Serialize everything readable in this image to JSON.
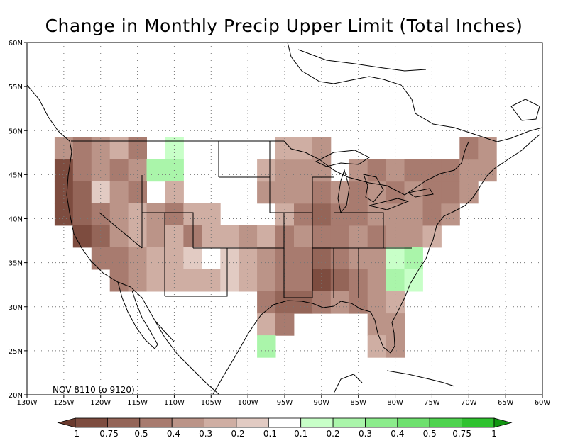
{
  "title": "Change in Monthly Precip Upper Limit (Total Inches)",
  "period_label": "NOV 8110 to 9120)",
  "map": {
    "lon_range": [
      -130,
      -60
    ],
    "lat_range": [
      20,
      60
    ],
    "x_tick_labels": [
      "130W",
      "125W",
      "120W",
      "115W",
      "110W",
      "105W",
      "100W",
      "95W",
      "90W",
      "85W",
      "80W",
      "75W",
      "70W",
      "65W",
      "60W"
    ],
    "y_tick_labels": [
      "20N",
      "25N",
      "30N",
      "35N",
      "40N",
      "45N",
      "50N",
      "55N",
      "60N"
    ],
    "grid": "dotted"
  },
  "colorbar": {
    "levels": [
      "-1",
      "-0.75",
      "-0.5",
      "-0.4",
      "-0.3",
      "-0.2",
      "-0.1",
      "0.1",
      "0.2",
      "0.3",
      "0.4",
      "0.5",
      "0.75",
      "1"
    ],
    "colors": [
      "#6b3a2e",
      "#7d4c3f",
      "#946558",
      "#a87b6f",
      "#bb9488",
      "#cfaea3",
      "#e2cbc3",
      "#ffffff",
      "#c8ffc8",
      "#aaf5aa",
      "#8cec8c",
      "#6ee06e",
      "#4fd34f",
      "#2fc22f",
      "#129612"
    ]
  },
  "legend_colors": {
    "m1": "#6b3a2e",
    "m075": "#7d4c3f",
    "m05": "#946558",
    "m04": "#a87b6f",
    "m03": "#bb9488",
    "m02": "#cfaea3",
    "m01": "#e2cbc3",
    "p01": "#c8ffc8",
    "p02": "#aaf5aa",
    "p03": "#8cec8c"
  },
  "grid_cells": [
    [
      "-125",
      "48",
      "m03"
    ],
    [
      "-122.5",
      "48",
      "m04"
    ],
    [
      "-120",
      "48",
      "m03"
    ],
    [
      "-117.5",
      "48",
      "m02"
    ],
    [
      "-115",
      "48",
      "m04"
    ],
    [
      "-110",
      "48",
      "p01"
    ],
    [
      "-125",
      "45.5",
      "m075"
    ],
    [
      "-122.5",
      "45.5",
      "m04"
    ],
    [
      "-120",
      "45.5",
      "m03"
    ],
    [
      "-117.5",
      "45.5",
      "m04"
    ],
    [
      "-115",
      "45.5",
      "m03"
    ],
    [
      "-112.5",
      "45.5",
      "p02"
    ],
    [
      "-110",
      "45.5",
      "p02"
    ],
    [
      "-125",
      "43",
      "m075"
    ],
    [
      "-122.5",
      "43",
      "m05"
    ],
    [
      "-120",
      "43",
      "m01"
    ],
    [
      "-117.5",
      "43",
      "m03"
    ],
    [
      "-115",
      "43",
      "m04"
    ],
    [
      "-110",
      "43",
      "m02"
    ],
    [
      "-125",
      "40.5",
      "m075"
    ],
    [
      "-122.5",
      "40.5",
      "m05"
    ],
    [
      "-120",
      "40.5",
      "m04"
    ],
    [
      "-117.5",
      "40.5",
      "m03"
    ],
    [
      "-115",
      "40.5",
      "m02"
    ],
    [
      "-112.5",
      "40.5",
      "m03"
    ],
    [
      "-110",
      "40.5",
      "m04"
    ],
    [
      "-107.5",
      "40.5",
      "m02"
    ],
    [
      "-105",
      "40.5",
      "m02"
    ],
    [
      "-122.5",
      "38",
      "m075"
    ],
    [
      "-120",
      "38",
      "m05"
    ],
    [
      "-117.5",
      "38",
      "m03"
    ],
    [
      "-115",
      "38",
      "m02"
    ],
    [
      "-112.5",
      "38",
      "m03"
    ],
    [
      "-110",
      "38",
      "m02"
    ],
    [
      "-107.5",
      "38",
      "m04"
    ],
    [
      "-105",
      "38",
      "m02"
    ],
    [
      "-102.5",
      "38",
      "m02"
    ],
    [
      "-100",
      "38",
      "m03"
    ],
    [
      "-97.5",
      "38",
      "m02"
    ],
    [
      "-120",
      "35.5",
      "m04"
    ],
    [
      "-117.5",
      "35.5",
      "m04"
    ],
    [
      "-115",
      "35.5",
      "m03"
    ],
    [
      "-112.5",
      "35.5",
      "m02"
    ],
    [
      "-110",
      "35.5",
      "m02"
    ],
    [
      "-107.5",
      "35.5",
      "m01"
    ],
    [
      "-102.5",
      "35.5",
      "m01"
    ],
    [
      "-100",
      "35.5",
      "m02"
    ],
    [
      "-97.5",
      "35.5",
      "m03"
    ],
    [
      "-117.5",
      "33",
      "m04"
    ],
    [
      "-115",
      "33",
      "m03"
    ],
    [
      "-112.5",
      "33",
      "m02"
    ],
    [
      "-110",
      "33",
      "m02"
    ],
    [
      "-107.5",
      "33",
      "m02"
    ],
    [
      "-105",
      "33",
      "m02"
    ],
    [
      "-102.5",
      "33",
      "m01"
    ],
    [
      "-100",
      "33",
      "m02"
    ],
    [
      "-97.5",
      "33",
      "m03"
    ],
    [
      "-95",
      "38",
      "m04"
    ],
    [
      "-92.5",
      "38",
      "m03"
    ],
    [
      "-90",
      "38",
      "m04"
    ],
    [
      "-87.5",
      "38",
      "m04"
    ],
    [
      "-85",
      "38",
      "m03"
    ],
    [
      "-82.5",
      "38",
      "m04"
    ],
    [
      "-80",
      "38",
      "m03"
    ],
    [
      "-77.5",
      "38",
      "m03"
    ],
    [
      "-75",
      "38",
      "m02"
    ],
    [
      "-95",
      "40.5",
      "m02"
    ],
    [
      "-92.5",
      "40.5",
      "m04"
    ],
    [
      "-90",
      "40.5",
      "m05"
    ],
    [
      "-87.5",
      "40.5",
      "m04"
    ],
    [
      "-85",
      "40.5",
      "m04"
    ],
    [
      "-82.5",
      "40.5",
      "m03"
    ],
    [
      "-80",
      "40.5",
      "m03"
    ],
    [
      "-77.5",
      "40.5",
      "m03"
    ],
    [
      "-75",
      "40.5",
      "m04"
    ],
    [
      "-72.5",
      "40.5",
      "m03"
    ],
    [
      "-97.5",
      "43",
      "m03"
    ],
    [
      "-95",
      "43",
      "m03"
    ],
    [
      "-92.5",
      "43",
      "m03"
    ],
    [
      "-90",
      "43",
      "m04"
    ],
    [
      "-87.5",
      "43",
      "m03"
    ],
    [
      "-85",
      "43",
      "m04"
    ],
    [
      "-82.5",
      "43",
      "m03"
    ],
    [
      "-80",
      "43",
      "m04"
    ],
    [
      "-77.5",
      "43",
      "m03"
    ],
    [
      "-75",
      "43",
      "m04"
    ],
    [
      "-72.5",
      "43",
      "m04"
    ],
    [
      "-70",
      "43",
      "m03"
    ],
    [
      "-97.5",
      "45.5",
      "m02"
    ],
    [
      "-95",
      "45.5",
      "m03"
    ],
    [
      "-92.5",
      "45.5",
      "m03"
    ],
    [
      "-90",
      "45.5",
      "m03"
    ],
    [
      "-85",
      "45.5",
      "m03"
    ],
    [
      "-82.5",
      "45.5",
      "m04"
    ],
    [
      "-80",
      "45.5",
      "m03"
    ],
    [
      "-77.5",
      "45.5",
      "m04"
    ],
    [
      "-75",
      "45.5",
      "m04"
    ],
    [
      "-72.5",
      "45.5",
      "m04"
    ],
    [
      "-70",
      "45.5",
      "m03"
    ],
    [
      "-67.5",
      "45.5",
      "m03"
    ],
    [
      "-95",
      "48",
      "m02"
    ],
    [
      "-92.5",
      "48",
      "m02"
    ],
    [
      "-90",
      "48",
      "m03"
    ],
    [
      "-70",
      "48",
      "m04"
    ],
    [
      "-67.5",
      "48",
      "m03"
    ],
    [
      "-95",
      "35.5",
      "m04"
    ],
    [
      "-92.5",
      "35.5",
      "m04"
    ],
    [
      "-90",
      "35.5",
      "m05"
    ],
    [
      "-87.5",
      "35.5",
      "m04"
    ],
    [
      "-85",
      "35.5",
      "m03"
    ],
    [
      "-82.5",
      "35.5",
      "m03"
    ],
    [
      "-80",
      "35.5",
      "p01"
    ],
    [
      "-77.5",
      "35.5",
      "p02"
    ],
    [
      "-95",
      "33",
      "m04"
    ],
    [
      "-92.5",
      "33",
      "m04"
    ],
    [
      "-90",
      "33",
      "m075"
    ],
    [
      "-87.5",
      "33",
      "m05"
    ],
    [
      "-85",
      "33",
      "m04"
    ],
    [
      "-82.5",
      "33",
      "m03"
    ],
    [
      "-80",
      "33",
      "p02"
    ],
    [
      "-77.5",
      "33",
      "p01"
    ],
    [
      "-97.5",
      "30.5",
      "m04"
    ],
    [
      "-95",
      "30.5",
      "m05"
    ],
    [
      "-92.5",
      "30.5",
      "m05"
    ],
    [
      "-90",
      "30.5",
      "m04"
    ],
    [
      "-87.5",
      "30.5",
      "m03"
    ],
    [
      "-85",
      "30.5",
      "m04"
    ],
    [
      "-82.5",
      "30.5",
      "m03"
    ],
    [
      "-80",
      "30.5",
      "m02"
    ],
    [
      "-97.5",
      "28",
      "m02"
    ],
    [
      "-95",
      "28",
      "m04"
    ],
    [
      "-82.5",
      "28",
      "m03"
    ],
    [
      "-80",
      "28",
      "m03"
    ],
    [
      "-97.5",
      "25.5",
      "p02"
    ],
    [
      "-82.5",
      "25.5",
      "m02"
    ],
    [
      "-80",
      "25.5",
      "m03"
    ]
  ]
}
